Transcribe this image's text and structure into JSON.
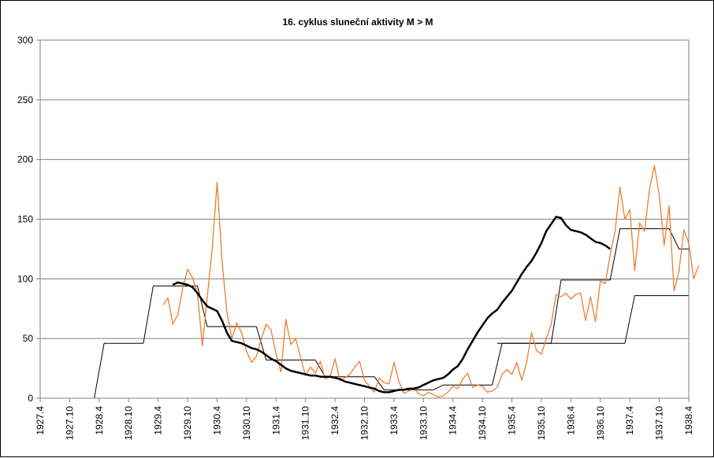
{
  "chart_data": {
    "type": "line",
    "title": "16. cyklus sluneční aktivity  M > M",
    "xlabel": "",
    "ylabel": "",
    "ylim": [
      0,
      300
    ],
    "yticks": [
      0,
      50,
      100,
      150,
      200,
      250,
      300
    ],
    "xticks": [
      "1927.4",
      "1927.10",
      "1928.4",
      "1928.10",
      "1929.4",
      "1929.10",
      "1930.4",
      "1930.10",
      "1931.4",
      "1931.10",
      "1932.4",
      "1932.10",
      "1933.4",
      "1933.10",
      "1934.4",
      "1934.10",
      "1935.4",
      "1935.10",
      "1936.4",
      "1936.10",
      "1937.4",
      "1937.10",
      "1938.4"
    ],
    "x_start": "1927.4",
    "x_end": "1938.4",
    "grid": "horizontal",
    "legend": "none",
    "colors": {
      "monthly": "#ed7d31",
      "smoothed": "#000000",
      "step": "#000000",
      "grid": "#808080"
    },
    "series": [
      {
        "key": "monthly",
        "start_month": "1929.5",
        "values": [
          78,
          84,
          62,
          70,
          92,
          108,
          101,
          88,
          44,
          85,
          125,
          181,
          115,
          72,
          50,
          63,
          55,
          39,
          30,
          35,
          50,
          62,
          57,
          37,
          22,
          66,
          45,
          50,
          34,
          19,
          26,
          21,
          31,
          16,
          18,
          33,
          15,
          17,
          20,
          26,
          31,
          15,
          10,
          5,
          17,
          13,
          12,
          30,
          14,
          4,
          6,
          8,
          4,
          2,
          5,
          3,
          1,
          2,
          5,
          10,
          8,
          16,
          21,
          9,
          11,
          10,
          5,
          6,
          9,
          20,
          24,
          20,
          30,
          15,
          30,
          55,
          40,
          37,
          50,
          62,
          87,
          85,
          88,
          83,
          87,
          88,
          65,
          85,
          64,
          98,
          96,
          120,
          140,
          177,
          150,
          158,
          107,
          147,
          140,
          175,
          195,
          170,
          128,
          161,
          90,
          106,
          141,
          130,
          100,
          111
        ]
      },
      {
        "key": "smoothed",
        "start_month": "1929.7",
        "values": [
          95,
          97,
          96,
          95,
          93,
          88,
          82,
          77,
          75,
          73,
          65,
          55,
          48,
          47,
          46,
          44,
          42,
          41,
          39,
          36,
          33,
          31,
          28,
          25,
          23,
          22,
          21,
          20,
          19,
          19,
          18,
          18,
          18,
          17,
          16,
          14,
          13,
          12,
          11,
          10,
          9,
          8,
          6,
          5,
          5,
          6,
          7,
          7,
          8,
          8,
          9,
          11,
          13,
          15,
          16,
          17,
          20,
          24,
          27,
          33,
          41,
          48,
          55,
          61,
          67,
          71,
          74,
          80,
          85,
          90,
          97,
          104,
          110,
          115,
          122,
          130,
          140,
          146,
          152,
          151,
          145,
          141,
          140,
          139,
          137,
          134,
          131,
          130,
          128,
          125
        ]
      },
      {
        "key": "step",
        "points": [
          [
            "1927.4",
            0
          ],
          [
            "1928.3",
            0
          ],
          [
            "1928.5",
            46
          ],
          [
            "1929.1",
            46
          ],
          [
            "1929.3",
            94
          ],
          [
            "1929.10",
            94
          ],
          [
            "1929.12",
            94
          ],
          [
            "1930.2",
            60
          ],
          [
            "1930.12",
            60
          ],
          [
            "1931.2",
            32
          ],
          [
            "1931.12",
            32
          ],
          [
            "1932.2",
            18
          ],
          [
            "1932.12",
            18
          ],
          [
            "1933.2",
            7
          ],
          [
            "1933.12",
            7
          ],
          [
            "1934.2",
            11
          ],
          [
            "1934.12",
            11
          ],
          [
            "1935.2",
            46
          ],
          [
            "1935.12",
            46
          ],
          [
            "1936.2",
            99
          ],
          [
            "1936.12",
            99
          ],
          [
            "1937.2",
            142
          ],
          [
            "1937.12",
            142
          ],
          [
            "1938.2",
            125
          ],
          [
            "1938.4",
            125
          ]
        ]
      },
      {
        "key": "step",
        "points": [
          [
            "1935.1",
            46
          ],
          [
            "1937.3",
            46
          ],
          [
            "1937.5",
            86
          ],
          [
            "1938.4",
            86
          ]
        ]
      }
    ]
  }
}
